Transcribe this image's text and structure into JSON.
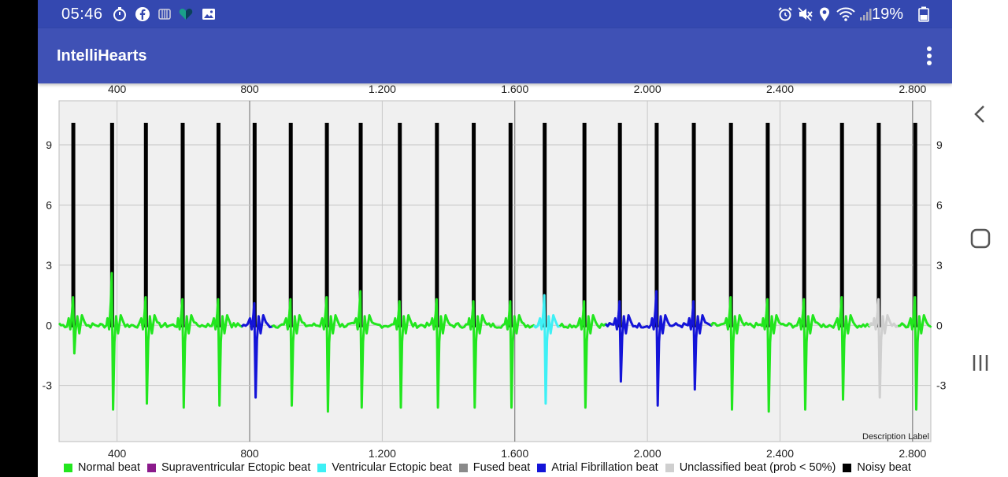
{
  "status_bar": {
    "time": "05:46",
    "battery_percent": "19%",
    "left_icons": [
      "timer-icon",
      "facebook-icon",
      "nfc-icon",
      "heart-icon",
      "gallery-icon"
    ],
    "right_icons": [
      "alarm-icon",
      "mute-icon",
      "location-icon",
      "wifi-icon",
      "signal-icon",
      "battery-icon"
    ]
  },
  "app_bar": {
    "title": "IntelliHearts",
    "menu_icon": "more-vert-icon"
  },
  "nav_bar": {
    "icons": [
      "back-icon",
      "home-icon",
      "recents-icon"
    ]
  },
  "colors": {
    "normal": "#22e61e",
    "sveb": "#8b1a8b",
    "veb": "#3ef0f5",
    "fused": "#8a8a8a",
    "afib": "#1414d8",
    "unclassified": "#cfcfcf",
    "noisy": "#000000",
    "plot_bg": "#f0f0f0",
    "appbar": "#3f51b5",
    "statusbar": "#3448b0"
  },
  "chart_data": {
    "type": "line",
    "x_tick_labels": [
      "400",
      "800",
      "1.200",
      "1.600",
      "2.000",
      "2.400",
      "2.800"
    ],
    "x_ticks": [
      400,
      800,
      1200,
      1600,
      2000,
      2400,
      2800
    ],
    "y_tick_labels": [
      "-3",
      "0",
      "3",
      "6",
      "9"
    ],
    "y_ticks": [
      -3,
      0,
      3,
      6,
      9
    ],
    "xlim": [
      225,
      2855
    ],
    "ylim": [
      -5.8,
      11.2
    ],
    "description_label": "Description Label",
    "grid": true,
    "legend_position": "bottom",
    "legend": [
      {
        "label": "Normal beat",
        "color_key": "normal"
      },
      {
        "label": "Supraventricular Ectopic beat",
        "color_key": "sveb"
      },
      {
        "label": "Ventricular Ectopic beat",
        "color_key": "veb"
      },
      {
        "label": "Fused beat",
        "color_key": "fused"
      },
      {
        "label": "Atrial Fibrillation beat",
        "color_key": "afib"
      },
      {
        "label": "Unclassified beat (prob < 50%)",
        "color_key": "unclassified"
      },
      {
        "label": "Noisy beat",
        "color_key": "noisy"
      }
    ],
    "noisy_markers": {
      "top": 10.1,
      "x": [
        268,
        385,
        487,
        598,
        706,
        815,
        924,
        1033,
        1135,
        1253,
        1365,
        1476,
        1587,
        1690,
        1810,
        1917,
        2028,
        2140,
        2252,
        2363,
        2473,
        2587,
        2698,
        2808
      ]
    },
    "beats": [
      {
        "x": 268,
        "class": "normal",
        "r": 1.4,
        "s": -1.4
      },
      {
        "x": 385,
        "class": "normal",
        "r": 2.6,
        "s": -4.2
      },
      {
        "x": 487,
        "class": "normal",
        "r": 1.4,
        "s": -3.9
      },
      {
        "x": 598,
        "class": "normal",
        "r": 1.3,
        "s": -4.1
      },
      {
        "x": 706,
        "class": "normal",
        "r": 1.3,
        "s": -4.0
      },
      {
        "x": 815,
        "class": "afib",
        "r": 1.1,
        "s": -3.6
      },
      {
        "x": 924,
        "class": "normal",
        "r": 1.3,
        "s": -4.0
      },
      {
        "x": 1033,
        "class": "normal",
        "r": 1.4,
        "s": -4.3
      },
      {
        "x": 1135,
        "class": "normal",
        "r": 1.7,
        "s": -4.1
      },
      {
        "x": 1253,
        "class": "normal",
        "r": 1.2,
        "s": -4.1
      },
      {
        "x": 1365,
        "class": "normal",
        "r": 1.3,
        "s": -4.1
      },
      {
        "x": 1476,
        "class": "normal",
        "r": 1.2,
        "s": -4.1
      },
      {
        "x": 1587,
        "class": "normal",
        "r": 1.2,
        "s": -4.1
      },
      {
        "x": 1690,
        "class": "veb",
        "r": 1.5,
        "s": -3.9
      },
      {
        "x": 1810,
        "class": "normal",
        "r": 1.2,
        "s": -4.1
      },
      {
        "x": 1917,
        "class": "afib",
        "r": 1.2,
        "s": -2.8
      },
      {
        "x": 2028,
        "class": "afib",
        "r": 1.7,
        "s": -4.0
      },
      {
        "x": 2140,
        "class": "afib",
        "r": 1.2,
        "s": -3.2
      },
      {
        "x": 2252,
        "class": "normal",
        "r": 1.4,
        "s": -4.2
      },
      {
        "x": 2363,
        "class": "normal",
        "r": 1.3,
        "s": -4.3
      },
      {
        "x": 2473,
        "class": "normal",
        "r": 1.3,
        "s": -4.2
      },
      {
        "x": 2587,
        "class": "normal",
        "r": 1.4,
        "s": -3.7
      },
      {
        "x": 2698,
        "class": "unclassified",
        "r": 1.3,
        "s": -3.6
      },
      {
        "x": 2808,
        "class": "normal",
        "r": 1.4,
        "s": -4.2
      }
    ],
    "segment_boundaries": [
      {
        "x_end": 777,
        "class": "normal"
      },
      {
        "x_end": 870,
        "class": "afib"
      },
      {
        "x_end": 1660,
        "class": "normal"
      },
      {
        "x_end": 1740,
        "class": "veb"
      },
      {
        "x_end": 1880,
        "class": "normal"
      },
      {
        "x_end": 2195,
        "class": "afib"
      },
      {
        "x_end": 2670,
        "class": "normal"
      },
      {
        "x_end": 2760,
        "class": "unclassified"
      },
      {
        "x_end": 2855,
        "class": "normal"
      }
    ]
  }
}
